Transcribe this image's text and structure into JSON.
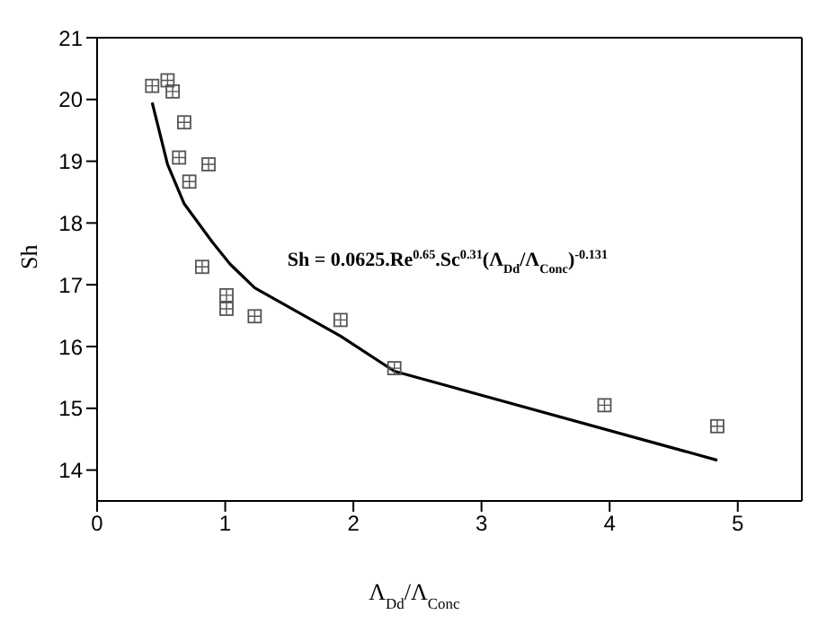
{
  "chart_data": {
    "type": "scatter",
    "xlabel": "Λ$_{Dd}$/Λ$_{Conc}$",
    "ylabel": "Sh",
    "xlim": [
      0,
      5.5
    ],
    "xticks": [
      0,
      1,
      2,
      3,
      4,
      5
    ],
    "ylim": [
      13.5,
      21
    ],
    "yticks": [
      14,
      15,
      16,
      17,
      18,
      19,
      20,
      21
    ],
    "marker": "square",
    "annotations": [
      "Sh = 0.0625.Re$^{0.65}$.Sc$^{0.31}$(Λ$_{Dd}$/Λ$_{Conc}$)$^{-0.131}$"
    ],
    "series": [
      {
        "color": "#555555",
        "x": [
          0.43,
          0.55,
          0.59,
          0.68,
          0.64,
          0.87,
          0.72,
          0.82,
          1.01,
          1.01,
          1.23,
          1.9,
          2.32,
          3.96,
          4.84
        ],
        "values": [
          20.22,
          20.31,
          20.13,
          19.63,
          19.06,
          18.95,
          18.67,
          17.29,
          16.83,
          16.61,
          16.49,
          16.43,
          15.65,
          15.05,
          14.71
        ]
      },
      {
        "type": "line",
        "color": "#000000",
        "marker": "none",
        "line_style": "solid",
        "x": [
          0.43,
          0.55,
          0.68,
          0.9,
          1.04,
          1.23,
          1.9,
          2.32,
          4.84
        ],
        "values": [
          19.95,
          18.95,
          18.31,
          17.69,
          17.33,
          16.95,
          16.17,
          15.6,
          14.16
        ]
      }
    ]
  }
}
